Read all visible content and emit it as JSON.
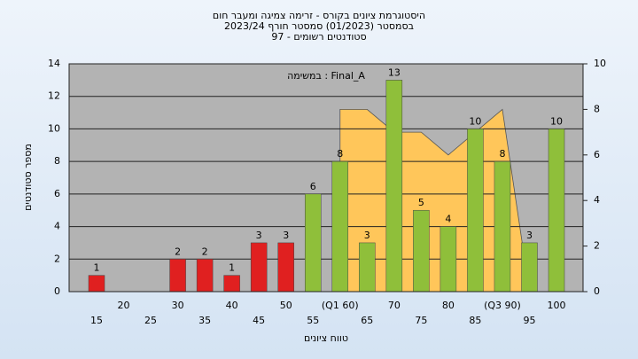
{
  "chart_data": {
    "type": "bar",
    "title": [
      "היסטוגרמת ציונים בקורס - זרימה צמיגה ומעבר חום",
      "בסמסטר  (01/2023)  סמסטר חורף 2023/24",
      "סטודנטים רשומים - 97"
    ],
    "annotation": "במשימה : Final_A",
    "x_label": "טווח ציונים",
    "y_label": "מספר סטודנטים",
    "categories": [
      "15",
      "20",
      "25",
      "30",
      "35",
      "40",
      "45",
      "50",
      "55",
      "(Q1 60)",
      "65",
      "70",
      "75",
      "80",
      "85",
      "(Q3 90)",
      "95",
      "100"
    ],
    "values": [
      1,
      0,
      0,
      2,
      2,
      1,
      3,
      3,
      6,
      8,
      3,
      13,
      5,
      4,
      10,
      8,
      3,
      10
    ],
    "colors": [
      "#e02020",
      "#e02020",
      "#e02020",
      "#e02020",
      "#e02020",
      "#e02020",
      "#e02020",
      "#e02020",
      "#8fbf3a",
      "#8fbf3a",
      "#8fbf3a",
      "#8fbf3a",
      "#8fbf3a",
      "#8fbf3a",
      "#8fbf3a",
      "#8fbf3a",
      "#8fbf3a",
      "#8fbf3a"
    ],
    "area": {
      "color": "#ffc65a",
      "axis": "y2",
      "values": [
        null,
        null,
        null,
        null,
        null,
        null,
        null,
        null,
        null,
        8,
        8,
        7,
        7,
        6,
        7,
        8,
        0,
        null
      ]
    },
    "ylim": [
      0,
      14
    ],
    "yticks": [
      0,
      2,
      4,
      6,
      8,
      10,
      12,
      14
    ],
    "y2lim": [
      0,
      10
    ],
    "y2ticks": [
      0,
      2,
      4,
      6,
      8,
      10
    ],
    "grid": true
  }
}
